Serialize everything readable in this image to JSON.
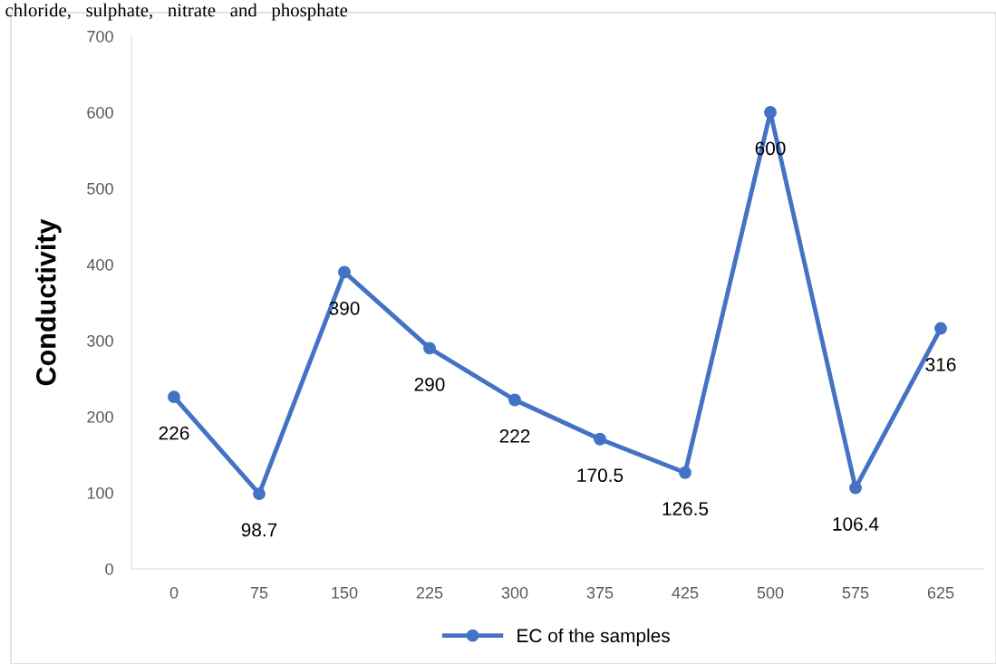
{
  "chart_data": {
    "type": "line",
    "ylabel": "Conductivity",
    "annotations": [
      "chloride,   sulphate,   nitrate   and   phosphate"
    ],
    "categories": [
      "0",
      "75",
      "150",
      "225",
      "300",
      "375",
      "425",
      "500",
      "575",
      "625"
    ],
    "series": [
      {
        "name": "EC of the samples",
        "color": "#4472c4",
        "values": [
          226,
          98.7,
          390,
          290,
          222,
          170.5,
          126.5,
          600,
          106.4,
          316
        ]
      }
    ],
    "ylim": [
      0,
      700
    ],
    "yticks": [
      0,
      100,
      200,
      300,
      400,
      500,
      600,
      700
    ],
    "data_labels": true,
    "legend": "bottom",
    "marker": "circle",
    "line_style": "solid",
    "grid": false
  }
}
